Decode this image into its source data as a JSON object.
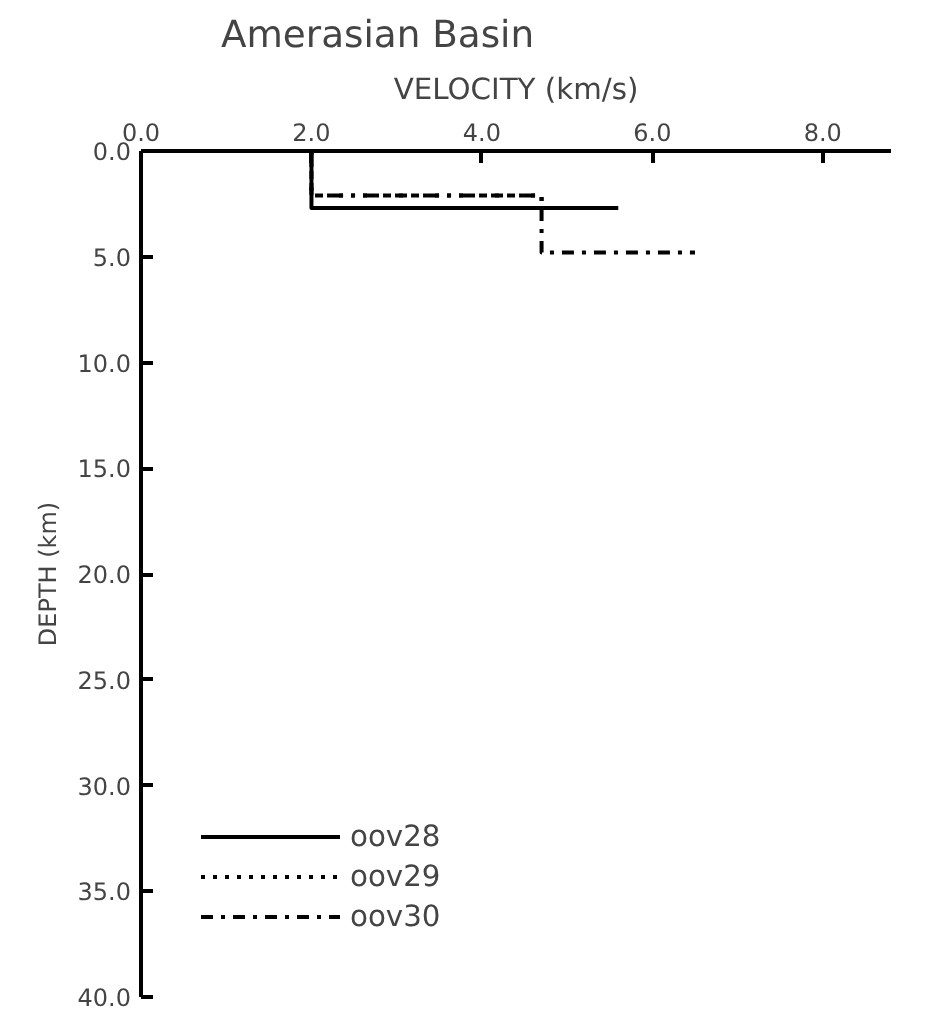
{
  "chart_data": {
    "type": "line",
    "title": "Amerasian Basin",
    "xlabel": "VELOCITY (km/s)",
    "ylabel": "DEPTH (km)",
    "xlim": [
      0,
      8.8
    ],
    "ylim": [
      40,
      0
    ],
    "xticks": [
      {
        "value": 0,
        "label": "0.0"
      },
      {
        "value": 2,
        "label": "2.0"
      },
      {
        "value": 4,
        "label": "4.0"
      },
      {
        "value": 6,
        "label": "6.0"
      },
      {
        "value": 8,
        "label": "8.0"
      }
    ],
    "yticks": [
      {
        "value": 0,
        "label": "0.0"
      },
      {
        "value": 5,
        "label": "5.0"
      },
      {
        "value": 10,
        "label": "10.0"
      },
      {
        "value": 15,
        "label": "15.0"
      },
      {
        "value": 20,
        "label": "20.0"
      },
      {
        "value": 25,
        "label": "25.0"
      },
      {
        "value": 30,
        "label": "30.0"
      },
      {
        "value": 35,
        "label": "35.0"
      },
      {
        "value": 40,
        "label": "40.0"
      }
    ],
    "series": [
      {
        "name": "oov28",
        "color": "#000000",
        "line_style": "solid",
        "x": [
          2.0,
          2.0,
          5.6
        ],
        "values": [
          0,
          2.7,
          2.7
        ]
      },
      {
        "name": "oov29",
        "color": "#000000",
        "line_style": "dotted",
        "x": [
          2.0,
          2.0,
          4.7,
          4.7
        ],
        "values": [
          0,
          2.1,
          2.1,
          2.7
        ]
      },
      {
        "name": "oov30",
        "color": "#000000",
        "line_style": "dashdot",
        "x": [
          2.0,
          2.0,
          4.7,
          4.7,
          6.5
        ],
        "values": [
          0,
          2.1,
          2.1,
          4.8,
          4.8
        ]
      }
    ],
    "grid": false,
    "legend": "bottom left"
  }
}
